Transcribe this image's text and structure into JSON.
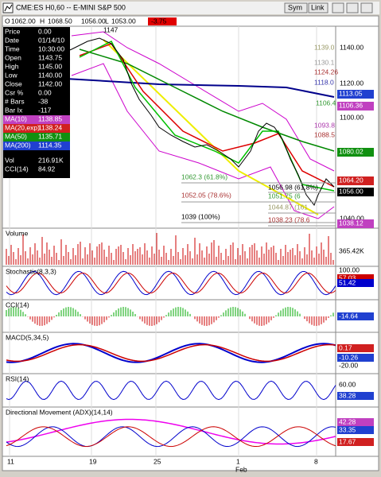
{
  "window": {
    "title": "CME:ES H0,60 -- E-MINI S&P 500",
    "buttons": [
      "Sym",
      "Link"
    ]
  },
  "quote": [
    "O",
    "1062.00",
    "H",
    "1068.50",
    "1056.00",
    "L",
    "1053.00",
    "-3.75"
  ],
  "data_window": {
    "rows": [
      [
        "Price",
        "0.00"
      ],
      [
        "Date",
        "01/14/10"
      ],
      [
        "Time",
        "10:30:00"
      ],
      [
        "Open",
        "1143.75"
      ],
      [
        "High",
        "1145.00"
      ],
      [
        "Low",
        "1140.00"
      ],
      [
        "Close",
        "1142.00"
      ],
      [
        "Csr %",
        "0.00"
      ],
      [
        "# Bars",
        "-38"
      ],
      [
        "Bar Ix",
        "-117"
      ],
      [
        "MA(10)",
        "1138.85"
      ],
      [
        "MA(20,exp)",
        "1138.24"
      ],
      [
        "MA(50)",
        "1135.71"
      ],
      [
        "MA(200)",
        "1114.35"
      ],
      [
        "Vol",
        "216.91K"
      ],
      [
        "CCI(14)",
        "84.92"
      ]
    ]
  },
  "price_axis": {
    "labels": [
      "1140.00",
      "1120.00",
      "1100.00",
      "1040.00"
    ],
    "markers": [
      "1113.05",
      "1106.36",
      "1080.02",
      "1064.20",
      "1056.00",
      "1038.12"
    ]
  },
  "fib_labels": [
    "1147",
    "1139.0",
    "1130.1",
    "1124.26",
    "1118.0",
    "1106.4",
    "1093.8",
    "1088.5",
    "1062.3 (61.8%)",
    "1056.98 (61.8%)",
    "1052.05 (78.6%)",
    "1051.75 (6",
    "1044.87 (161",
    "1039 (100%)",
    "1038.23 (78.6"
  ],
  "panels": [
    {
      "title": "Volume",
      "labels": [
        "365.42K"
      ]
    },
    {
      "title": "Stochastic(8,3,3)",
      "labels": [
        "100.00",
        "57.03",
        "51.42"
      ]
    },
    {
      "title": "CCI(14)",
      "labels": [
        "-14.64"
      ]
    },
    {
      "title": "MACD(5,34,5)",
      "labels": [
        "0.17",
        "-10.26",
        "-20.00"
      ]
    },
    {
      "title": "RSI(14)",
      "labels": [
        "60.00",
        "38.28"
      ]
    },
    {
      "title": "Directional Movement (ADX)(14,14)",
      "labels": [
        "42.28",
        "33.35",
        "17.67"
      ]
    }
  ],
  "x_axis": {
    "labels": [
      "11",
      "19",
      "25",
      "1",
      "8"
    ],
    "month": "Feb"
  }
}
